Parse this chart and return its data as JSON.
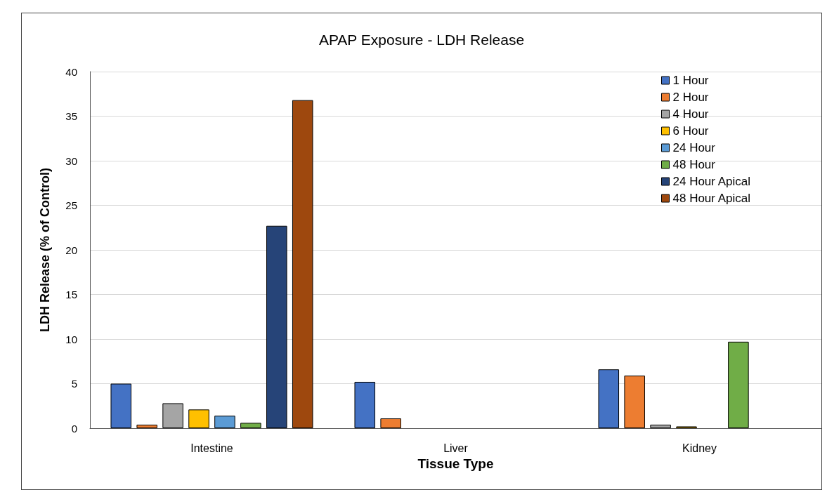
{
  "chart_data": {
    "type": "bar",
    "title": "APAP Exposure - LDH Release",
    "xlabel": "Tissue Type",
    "ylabel": "LDH Release (% of Control)",
    "categories": [
      "Intestine",
      "Liver",
      "Kidney"
    ],
    "series": [
      {
        "name": "1 Hour",
        "color": "#4472c4",
        "values": [
          5.0,
          5.2,
          6.6
        ]
      },
      {
        "name": "2 Hour",
        "color": "#ed7d31",
        "values": [
          0.4,
          1.1,
          5.9
        ]
      },
      {
        "name": "4 Hour",
        "color": "#a5a5a5",
        "values": [
          2.8,
          null,
          0.4
        ]
      },
      {
        "name": "6 Hour",
        "color": "#ffc000",
        "values": [
          2.1,
          null,
          0.2
        ]
      },
      {
        "name": "24 Hour",
        "color": "#5b9bd5",
        "values": [
          1.4,
          null,
          null
        ]
      },
      {
        "name": "48 Hour",
        "color": "#70ad47",
        "values": [
          0.6,
          null,
          9.7
        ]
      },
      {
        "name": "24 Hour Apical",
        "color": "#264478",
        "values": [
          22.7,
          null,
          null
        ]
      },
      {
        "name": "48 Hour Apical",
        "color": "#9e480e",
        "values": [
          36.8,
          null,
          null
        ]
      }
    ],
    "ylim": [
      0,
      40
    ],
    "yticks": [
      0,
      5,
      10,
      15,
      20,
      25,
      30,
      35,
      40
    ],
    "grid": "y",
    "legend": "top right"
  }
}
